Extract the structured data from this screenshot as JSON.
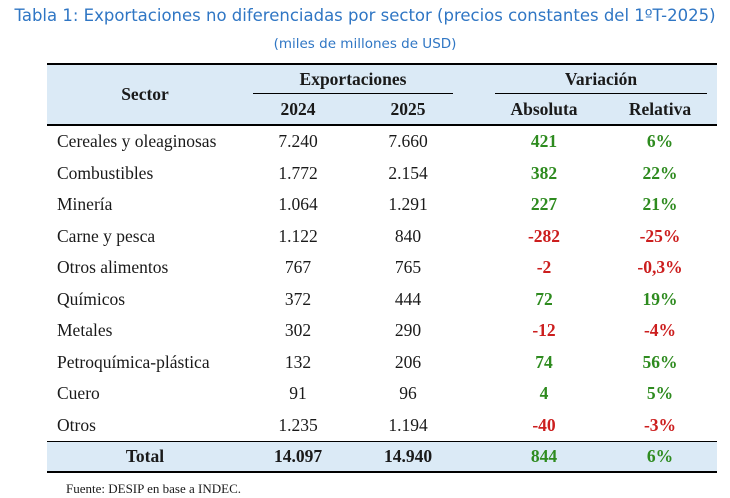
{
  "title": "Tabla 1: Exportaciones no diferenciadas por sector (precios constantes del 1ºT-2025)",
  "subtitle": "(miles de millones de USD)",
  "table": {
    "header": {
      "sector": "Sector",
      "exports_group": "Exportaciones",
      "variation_group": "Variación",
      "year1": "2024",
      "year2": "2025",
      "absolute": "Absoluta",
      "relative": "Relativa"
    },
    "rows": [
      {
        "sector": "Cereales y oleaginosas",
        "y2024": "7.240",
        "y2025": "7.660",
        "abs": "421",
        "rel": "6%",
        "sign": "pos"
      },
      {
        "sector": "Combustibles",
        "y2024": "1.772",
        "y2025": "2.154",
        "abs": "382",
        "rel": "22%",
        "sign": "pos"
      },
      {
        "sector": "Minería",
        "y2024": "1.064",
        "y2025": "1.291",
        "abs": "227",
        "rel": "21%",
        "sign": "pos"
      },
      {
        "sector": "Carne y pesca",
        "y2024": "1.122",
        "y2025": "840",
        "abs": "-282",
        "rel": "-25%",
        "sign": "neg"
      },
      {
        "sector": "Otros alimentos",
        "y2024": "767",
        "y2025": "765",
        "abs": "-2",
        "rel": "-0,3%",
        "sign": "neg"
      },
      {
        "sector": "Químicos",
        "y2024": "372",
        "y2025": "444",
        "abs": "72",
        "rel": "19%",
        "sign": "pos"
      },
      {
        "sector": "Metales",
        "y2024": "302",
        "y2025": "290",
        "abs": "-12",
        "rel": "-4%",
        "sign": "neg"
      },
      {
        "sector": "Petroquímica-plástica",
        "y2024": "132",
        "y2025": "206",
        "abs": "74",
        "rel": "56%",
        "sign": "pos"
      },
      {
        "sector": "Cuero",
        "y2024": "91",
        "y2025": "96",
        "abs": "4",
        "rel": "5%",
        "sign": "pos"
      },
      {
        "sector": "Otros",
        "y2024": "1.235",
        "y2025": "1.194",
        "abs": "-40",
        "rel": "-3%",
        "sign": "neg"
      }
    ],
    "total": {
      "sector": "Total",
      "y2024": "14.097",
      "y2025": "14.940",
      "abs": "844",
      "rel": "6%",
      "sign": "pos"
    }
  },
  "source": "Fuente: DESIP en base a INDEC.",
  "colors": {
    "title": "#2f76c4",
    "header_bg": "#dbeaf6",
    "positive": "#2e8b1f",
    "negative": "#cc1e1e"
  }
}
